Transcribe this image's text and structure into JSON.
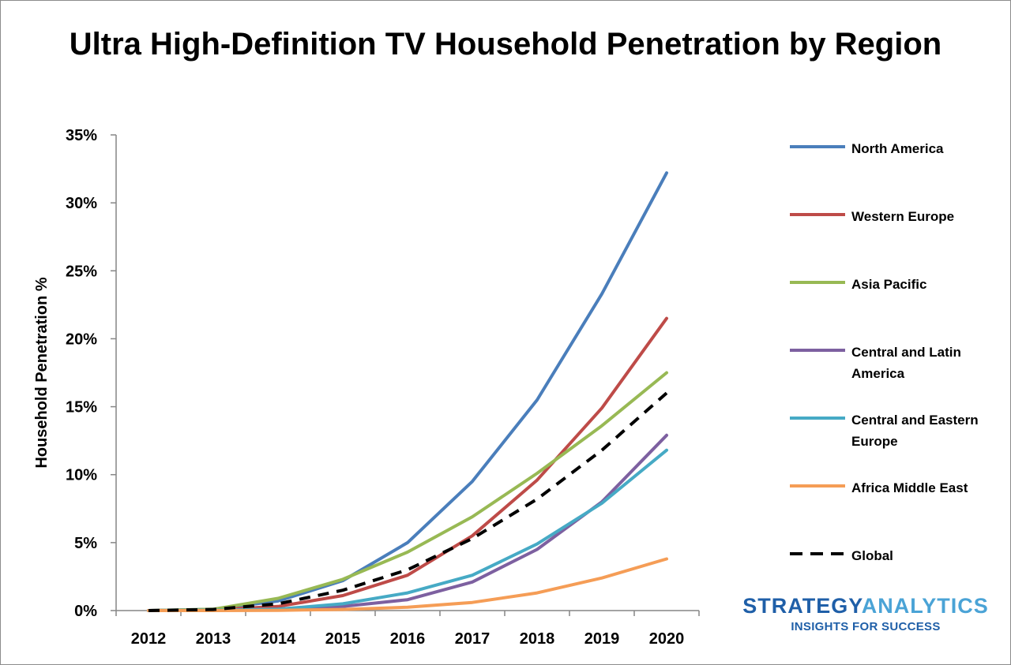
{
  "chart_data": {
    "type": "line",
    "title": "Ultra High-Definition TV Household Penetration by Region",
    "xlabel": "",
    "ylabel": "Household Penetration %",
    "ylim": [
      0,
      35
    ],
    "yticks": [
      "0%",
      "5%",
      "10%",
      "15%",
      "20%",
      "25%",
      "30%",
      "35%"
    ],
    "categories": [
      "2012",
      "2013",
      "2014",
      "2015",
      "2016",
      "2017",
      "2018",
      "2019",
      "2020"
    ],
    "grid": false,
    "legend_position": "right",
    "series": [
      {
        "name": "North America",
        "color": "#4a7ebb",
        "dashed": false,
        "values": [
          0,
          0.1,
          0.7,
          2.2,
          5.0,
          9.5,
          15.5,
          23.3,
          32.2
        ]
      },
      {
        "name": "Western Europe",
        "color": "#be4b48",
        "dashed": false,
        "values": [
          0,
          0.05,
          0.3,
          1.1,
          2.6,
          5.5,
          9.6,
          14.9,
          21.5
        ]
      },
      {
        "name": "Asia Pacific",
        "color": "#98b954",
        "dashed": false,
        "values": [
          0,
          0.1,
          0.9,
          2.3,
          4.3,
          6.9,
          10.1,
          13.6,
          17.5
        ]
      },
      {
        "name": "Central and Latin America",
        "color": "#7d60a0",
        "dashed": false,
        "values": [
          0,
          0.02,
          0.1,
          0.3,
          0.8,
          2.1,
          4.5,
          8.0,
          12.9
        ]
      },
      {
        "name": "Central and Eastern Europe",
        "color": "#46aac5",
        "dashed": false,
        "values": [
          0,
          0.02,
          0.1,
          0.5,
          1.3,
          2.6,
          4.9,
          7.9,
          11.8
        ]
      },
      {
        "name": "Africa Middle East",
        "color": "#f59d56",
        "dashed": false,
        "values": [
          0,
          0,
          0.02,
          0.08,
          0.25,
          0.6,
          1.3,
          2.4,
          3.8
        ]
      },
      {
        "name": "Global",
        "color": "#000000",
        "dashed": true,
        "values": [
          0,
          0.08,
          0.5,
          1.5,
          3.0,
          5.3,
          8.2,
          11.8,
          16.0
        ]
      }
    ]
  },
  "logo": {
    "part1": "STRATEGY",
    "part2": "ANALYTICS",
    "tagline": "INSIGHTS FOR SUCCESS",
    "color1": "#1f5fa8",
    "color2": "#4aa3d6"
  }
}
